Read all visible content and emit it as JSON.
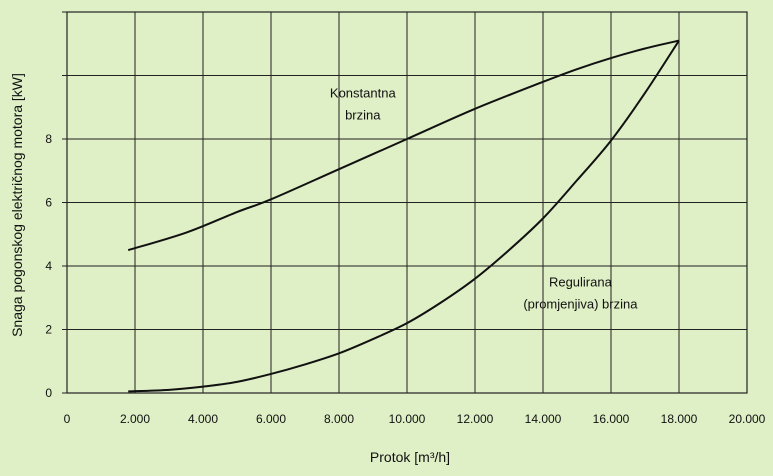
{
  "chart_data": {
    "type": "line",
    "xlabel": "Protok [m³/h]",
    "ylabel": "Snaga pogonskog električnog motora [kW]",
    "xlim": [
      0,
      20000
    ],
    "ylim": [
      0,
      12
    ],
    "x_ticks": [
      0,
      2000,
      4000,
      6000,
      8000,
      10000,
      12000,
      14000,
      16000,
      18000,
      20000
    ],
    "x_tick_labels": [
      "0",
      "2.000",
      "4.000",
      "6.000",
      "8.000",
      "10.000",
      "12.000",
      "14.000",
      "16.000",
      "18.000",
      "20.000"
    ],
    "y_ticks": [
      0,
      2,
      4,
      6,
      8
    ],
    "y_tick_labels": [
      "0",
      "2",
      "4",
      "6",
      "8"
    ],
    "y_gridlines": [
      0,
      2,
      4,
      6,
      8,
      10,
      12
    ],
    "grid": true,
    "series": [
      {
        "name": "Konstantna brzina",
        "label_lines": [
          "Konstantna",
          "brzina"
        ],
        "label_anchor": {
          "x": 8700,
          "y": 9.3
        },
        "x": [
          1800,
          3500,
          5000,
          6000,
          8000,
          10000,
          12000,
          14000,
          15000,
          16000,
          17000,
          18000
        ],
        "y": [
          4.5,
          5.05,
          5.7,
          6.1,
          7.05,
          8.0,
          8.95,
          9.8,
          10.2,
          10.55,
          10.85,
          11.1
        ]
      },
      {
        "name": "Regulirana (promjenjiva) brzina",
        "label_lines": [
          "Regulirana",
          "(promjenjiva) brzina"
        ],
        "label_anchor": {
          "x": 15100,
          "y": 3.35
        },
        "x": [
          1800,
          3000,
          4000,
          5000,
          6000,
          7000,
          8000,
          9000,
          10000,
          11000,
          12000,
          13000,
          14000,
          15000,
          16000,
          17000,
          18000
        ],
        "y": [
          0.05,
          0.1,
          0.2,
          0.35,
          0.6,
          0.9,
          1.25,
          1.7,
          2.2,
          2.85,
          3.6,
          4.5,
          5.5,
          6.7,
          7.95,
          9.45,
          11.1
        ]
      }
    ],
    "colors": {
      "background": "#dfefc6",
      "grid": "#222222",
      "line": "#111111"
    }
  }
}
